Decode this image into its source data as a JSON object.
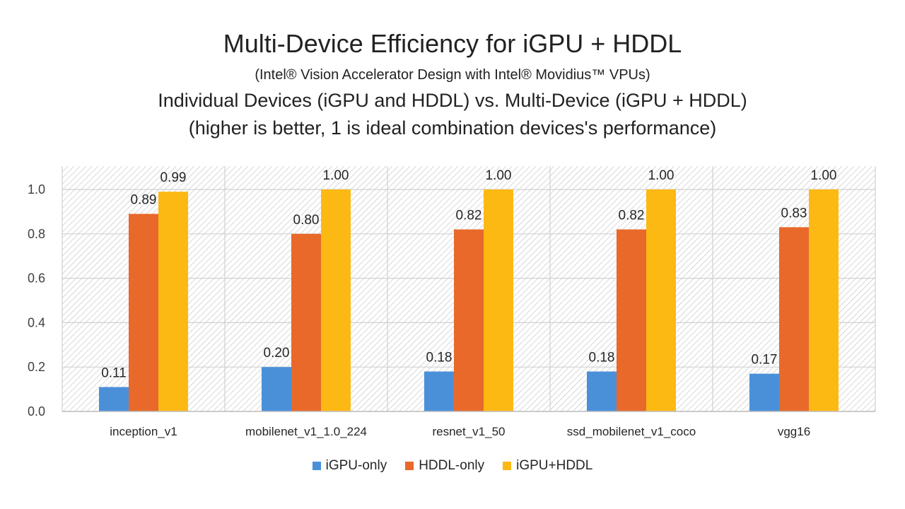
{
  "chart_data": {
    "type": "bar",
    "title": "Multi-Device Efficiency for iGPU + HDDL",
    "subtitle_1": "(Intel® Vision Accelerator Design with Intel® Movidius™ VPUs)",
    "subtitle_2": "Individual Devices (iGPU and HDDL) vs. Multi-Device (iGPU + HDDL)",
    "subtitle_3": "(higher is better, 1 is ideal combination devices's performance)",
    "categories": [
      "inception_v1",
      "mobilenet_v1_1.0_224",
      "resnet_v1_50",
      "ssd_mobilenet_v1_coco",
      "vgg16"
    ],
    "series": [
      {
        "name": "iGPU-only",
        "values": [
          0.11,
          0.2,
          0.18,
          0.18,
          0.17
        ],
        "labels": [
          "0.11",
          "0.20",
          "0.18",
          "0.18",
          "0.17"
        ],
        "color": "#4a90d9"
      },
      {
        "name": "HDDL-only",
        "values": [
          0.89,
          0.8,
          0.82,
          0.82,
          0.83
        ],
        "labels": [
          "0.89",
          "0.80",
          "0.82",
          "0.82",
          "0.83"
        ],
        "color": "#e8692a"
      },
      {
        "name": "iGPU+HDDL",
        "values": [
          0.99,
          1.0,
          1.0,
          1.0,
          1.0
        ],
        "labels": [
          "0.99",
          "1.00",
          "1.00",
          "1.00",
          "1.00"
        ],
        "color": "#fdb913"
      }
    ],
    "yticks": [
      "0.0",
      "0.2",
      "0.4",
      "0.6",
      "0.8",
      "1.0"
    ],
    "ylim": [
      0,
      1.1
    ],
    "grid": true,
    "legend_position": "bottom"
  }
}
